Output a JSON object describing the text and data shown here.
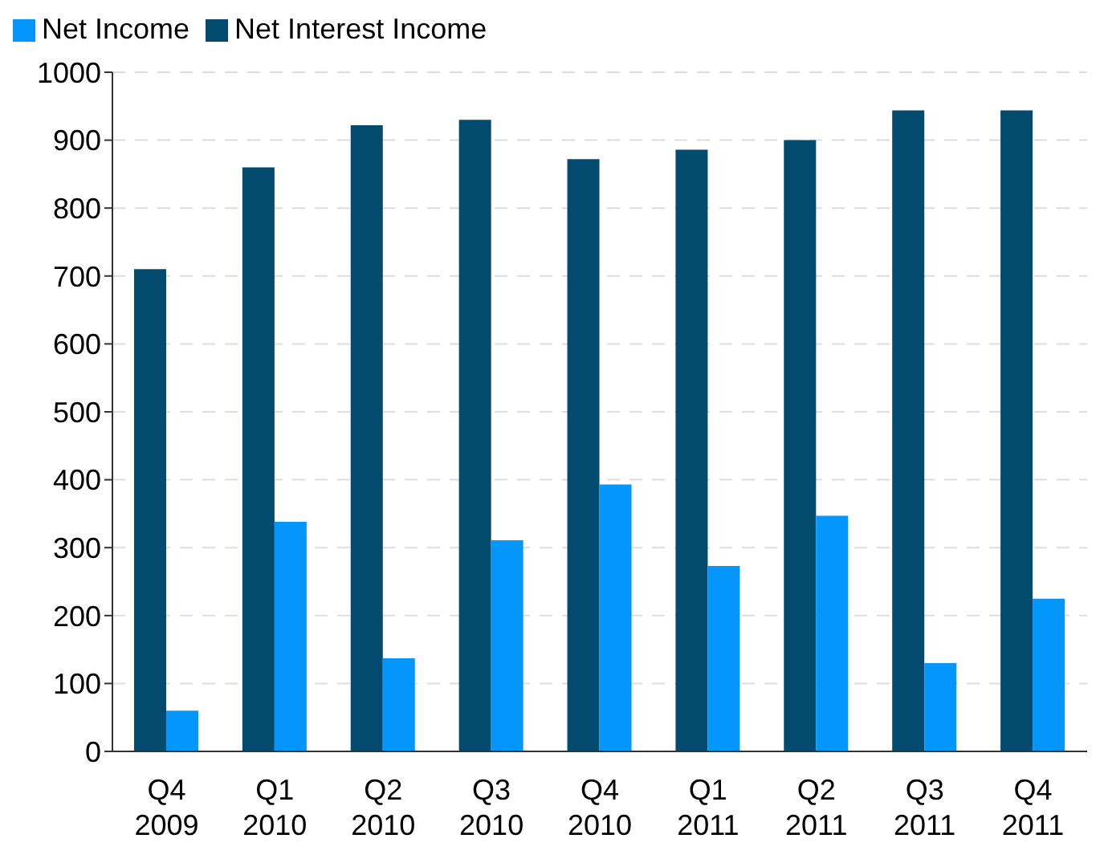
{
  "chart_data": {
    "type": "bar",
    "categories": [
      "Q4\n2009",
      "Q1\n2010",
      "Q2\n2010",
      "Q3\n2010",
      "Q4\n2010",
      "Q1\n2011",
      "Q2\n2011",
      "Q3\n2011",
      "Q4\n2011"
    ],
    "series": [
      {
        "name": "Net Interest Income",
        "color": "#024a6e",
        "values": [
          710,
          860,
          922,
          930,
          872,
          886,
          900,
          944,
          944
        ]
      },
      {
        "name": "Net Income",
        "color": "#0397fd",
        "values": [
          60,
          338,
          137,
          311,
          393,
          273,
          347,
          130,
          225
        ]
      }
    ],
    "ylim": [
      0,
      1000
    ],
    "yticks": [
      0,
      100,
      200,
      300,
      400,
      500,
      600,
      700,
      800,
      900,
      1000
    ],
    "grid": "y",
    "legend": "top left"
  }
}
